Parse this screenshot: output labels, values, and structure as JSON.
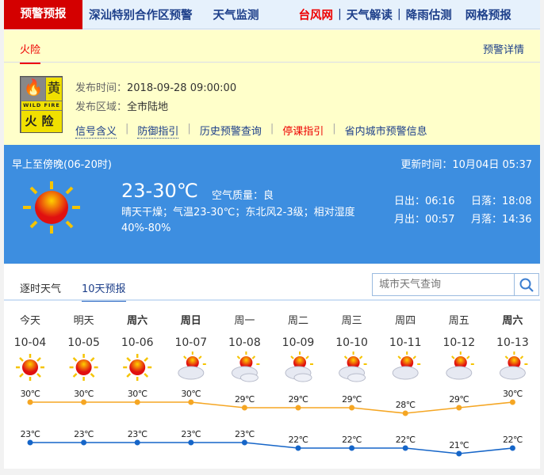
{
  "nav": {
    "items": [
      "预警预报",
      "深汕特别合作区预警",
      "天气监测",
      "台风网",
      "天气解读",
      "降雨估测",
      "网格预报"
    ]
  },
  "warning": {
    "tab": "火险",
    "detail_link": "预警详情",
    "badge": {
      "level": "黄",
      "en": "WILD FIRE",
      "type": "火险"
    },
    "time_label": "发布时间：",
    "time": "2018-09-28 09:00:00",
    "area_label": "发布区域：",
    "area": "全市陆地",
    "links": [
      "信号含义",
      "防御指引",
      "历史预警查询",
      "停课指引",
      "省内城市预警信息"
    ]
  },
  "weather": {
    "period": "早上至傍晚(06-20时)",
    "update": "更新时间：10月04日 05:37",
    "temp": "23-30℃",
    "aqi_label": "空气质量：",
    "aqi": "良",
    "desc": "晴天干燥；气温23-30℃；东北风2-3级；相对湿度40%-80%",
    "sunrise": "日出：06:16",
    "sunset": "日落：18:08",
    "moonrise": "月出：00:57",
    "moonset": "月落：14:36"
  },
  "forecast": {
    "tabs": [
      "逐时天气",
      "10天预报"
    ],
    "active_tab": 1,
    "search_placeholder": "城市天气查询",
    "days": [
      {
        "day": "今天",
        "date": "10-04",
        "icon": "sunny",
        "high": "30℃",
        "low": "23℃"
      },
      {
        "day": "明天",
        "date": "10-05",
        "icon": "sunny",
        "high": "30℃",
        "low": "23℃"
      },
      {
        "day": "周六",
        "date": "10-06",
        "icon": "sunny",
        "high": "30℃",
        "low": "23℃"
      },
      {
        "day": "周日",
        "date": "10-07",
        "icon": "sunny-cloudy",
        "high": "30℃",
        "low": "23℃"
      },
      {
        "day": "周一",
        "date": "10-08",
        "icon": "cloudy",
        "high": "29℃",
        "low": "23℃"
      },
      {
        "day": "周二",
        "date": "10-09",
        "icon": "cloudy",
        "high": "29℃",
        "low": "22℃"
      },
      {
        "day": "周三",
        "date": "10-10",
        "icon": "cloudy",
        "high": "29℃",
        "low": "22℃"
      },
      {
        "day": "周四",
        "date": "10-11",
        "icon": "sunny-cloudy",
        "high": "28℃",
        "low": "22℃"
      },
      {
        "day": "周五",
        "date": "10-12",
        "icon": "sunny-cloudy",
        "high": "29℃",
        "low": "21℃"
      },
      {
        "day": "周六",
        "date": "10-13",
        "icon": "sunny-cloudy",
        "high": "30℃",
        "low": "22℃"
      }
    ],
    "highs": [
      30,
      30,
      30,
      30,
      29,
      29,
      29,
      28,
      29,
      30
    ],
    "lows": [
      23,
      23,
      23,
      23,
      23,
      22,
      22,
      22,
      21,
      22
    ],
    "colors": {
      "high": "#f5a623",
      "low": "#1565c8"
    }
  }
}
